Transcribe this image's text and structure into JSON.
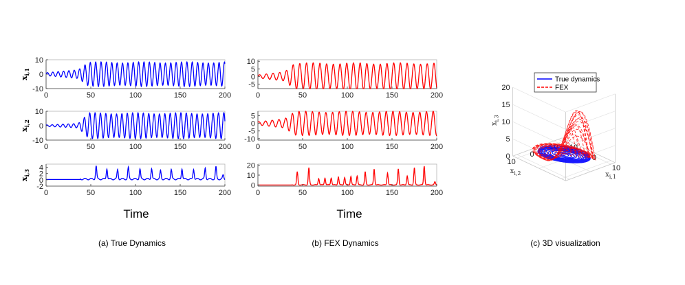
{
  "chart_data": [
    {
      "type": "line",
      "id": "true",
      "color": "#0000ff",
      "caption": "(a) True Dynamics",
      "xlabel": "Time",
      "xlim": [
        0,
        200
      ],
      "xticks": [
        "0",
        "50",
        "100",
        "150",
        "200"
      ],
      "panels": [
        {
          "ylabel": "x_{i,1}",
          "ylim": [
            -10,
            10
          ],
          "yticks": [
            {
              "v": 10,
              "t": "10"
            },
            {
              "v": 0,
              "t": "0"
            },
            {
              "v": -10,
              "t": "-10"
            }
          ],
          "kind": "osc",
          "amp0": 1,
          "amp1": 8.5,
          "rise": 48,
          "period": 6.0
        },
        {
          "ylabel": "x_{i,2}",
          "ylim": [
            -10,
            10
          ],
          "yticks": [
            {
              "v": 10,
              "t": "10"
            },
            {
              "v": 0,
              "t": "0"
            },
            {
              "v": -10,
              "t": "-10"
            }
          ],
          "kind": "osc",
          "amp0": 0.5,
          "amp1": 9,
          "rise": 48,
          "period": 6.0
        },
        {
          "ylabel": "x_{i,3}",
          "ylim": [
            -2,
            5
          ],
          "yticks": [
            {
              "v": 4,
              "t": "4"
            },
            {
              "v": 2,
              "t": "2"
            },
            {
              "v": 0,
              "t": "0"
            },
            {
              "v": -2,
              "t": "-2"
            }
          ],
          "kind": "spike",
          "spike_times": [
            56,
            68,
            80,
            92,
            105,
            118,
            128,
            140,
            152,
            165,
            178,
            190,
            198
          ],
          "spike_heights": [
            4.2,
            3.4,
            3.0,
            3.6,
            3.2,
            3.4,
            2.6,
            3.0,
            3.4,
            3.2,
            3.5,
            3.8,
            1.2
          ]
        }
      ]
    },
    {
      "type": "line",
      "id": "fex",
      "color": "#ff0000",
      "caption": "(b) FEX Dynamics",
      "xlabel": "Time",
      "xlim": [
        0,
        200
      ],
      "xticks": [
        "0",
        "50",
        "100",
        "150",
        "200"
      ],
      "panels": [
        {
          "ylabel": "",
          "ylim": [
            -8,
            11
          ],
          "yticks": [
            {
              "v": 10,
              "t": "10"
            },
            {
              "v": 5,
              "t": "5"
            },
            {
              "v": 0,
              "t": "0"
            },
            {
              "v": -5,
              "t": "-5"
            }
          ],
          "kind": "osc",
          "amp0": 1,
          "amp1": 9,
          "rise": 42,
          "period": 7.5
        },
        {
          "ylabel": "",
          "ylim": [
            -11,
            8
          ],
          "yticks": [
            {
              "v": 5,
              "t": "5"
            },
            {
              "v": 0,
              "t": "0"
            },
            {
              "v": -5,
              "t": "-5"
            },
            {
              "v": -10,
              "t": "-10"
            }
          ],
          "kind": "osc",
          "amp0": 1,
          "amp1": 8,
          "rise": 42,
          "period": 7.5
        },
        {
          "ylabel": "",
          "ylim": [
            -1,
            21
          ],
          "yticks": [
            {
              "v": 20,
              "t": "20"
            },
            {
              "v": 10,
              "t": "10"
            },
            {
              "v": 0,
              "t": "0"
            }
          ],
          "kind": "spike",
          "spike_times": [
            44,
            57,
            68,
            75,
            82,
            90,
            97,
            104,
            111,
            120,
            130,
            145,
            157,
            167,
            175,
            186,
            198
          ],
          "spike_heights": [
            13,
            17,
            6.5,
            7,
            7,
            8,
            7.5,
            8.5,
            9,
            13,
            16,
            12,
            16,
            9,
            17,
            19,
            3
          ]
        }
      ]
    },
    {
      "type": "line3d",
      "id": "3d",
      "caption": "(c) 3D visualization",
      "zlabel": "x_{i,3}",
      "ylabel": "x_{i,2}",
      "xlabel": "x_{i,1}",
      "zticks": [
        "20",
        "15",
        "10",
        "5",
        "0"
      ],
      "yticks": [
        "10",
        "0",
        "-10"
      ],
      "xticks": [
        "-10",
        "0",
        "10"
      ],
      "legend": [
        {
          "label": "True dynamics",
          "color": "#0000ff",
          "dash": false
        },
        {
          "label": "FEX",
          "color": "#ff0000",
          "dash": true
        }
      ]
    }
  ]
}
